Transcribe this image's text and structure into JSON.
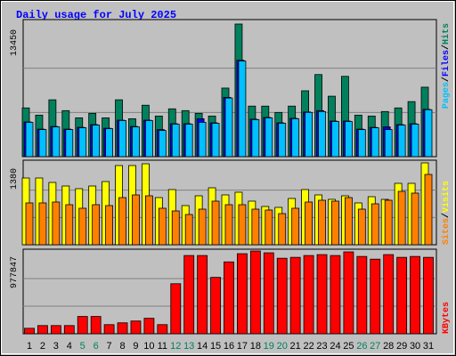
{
  "chart_data": [
    {
      "type": "bar",
      "title": "Daily usage for July 2025",
      "ylim": [
        0,
        13450
      ],
      "yticks": [
        13450
      ],
      "grid": true,
      "legend_separator": "/",
      "series": [
        {
          "name": "Hits",
          "color": "#00805c",
          "values": [
            4941,
            4209,
            5764,
            4666,
            3934,
            4392,
            3934,
            5764,
            3843,
            5215,
            4117,
            4849,
            4666,
            4392,
            4117,
            6954,
            13450,
            5124,
            5124,
            4483,
            5124,
            6679,
            8326,
            6130,
            8143,
            4209,
            4117,
            4575,
            4941,
            5581,
            7045
          ]
        },
        {
          "name": "Files",
          "color": "#0000ff",
          "values": [
            3520,
            2790,
            3060,
            2790,
            2970,
            3250,
            2880,
            3700,
            3060,
            3700,
            2745,
            3340,
            3340,
            3843,
            3430,
            6010,
            9780,
            3800,
            3980,
            3430,
            3890,
            4530,
            4666,
            3610,
            3610,
            2790,
            2970,
            3019,
            3250,
            3340,
            4800
          ]
        },
        {
          "name": "Pages",
          "color": "#00c0ff",
          "values": [
            3477,
            2745,
            3019,
            2745,
            2928,
            3202,
            2836,
            3660,
            3019,
            3660,
            2653,
            3294,
            3294,
            3477,
            3385,
            5947,
            9699,
            3751,
            3934,
            3385,
            3843,
            4483,
            4575,
            3568,
            3568,
            2745,
            2928,
            2745,
            3202,
            3294,
            4758
          ]
        }
      ]
    },
    {
      "type": "bar",
      "ylim": [
        0,
        1380
      ],
      "yticks": [
        1380
      ],
      "grid": true,
      "legend_separator": "/",
      "series": [
        {
          "name": "Visits",
          "color": "#ffff00",
          "values": [
            1125,
            1125,
            1050,
            990,
            945,
            990,
            1065,
            1335,
            1335,
            1365,
            795,
            930,
            660,
            825,
            960,
            840,
            885,
            735,
            645,
            630,
            780,
            930,
            840,
            765,
            825,
            705,
            810,
            765,
            1035,
            1035,
            1380
          ]
        },
        {
          "name": "Sites",
          "color": "#ff8000",
          "values": [
            705,
            705,
            720,
            675,
            615,
            675,
            660,
            795,
            840,
            825,
            615,
            570,
            510,
            600,
            735,
            675,
            675,
            600,
            585,
            525,
            615,
            720,
            750,
            735,
            795,
            600,
            690,
            750,
            900,
            870,
            1185
          ]
        }
      ]
    },
    {
      "type": "bar",
      "ylim": [
        0,
        977847
      ],
      "yticks": [
        977847
      ],
      "grid": true,
      "series": [
        {
          "name": "KBytes",
          "color": "#ff0000",
          "values": [
            64473,
            96710,
            96710,
            96710,
            204163,
            204163,
            107456,
            128947,
            150438,
            182674,
            107456,
            591007,
            924141,
            924141,
            666228,
            848911,
            945631,
            977847,
            956356,
            891893,
            902639,
            924141,
            934886,
            924141,
            967101,
            913384,
            881148,
            934886,
            902639,
            913384,
            902639
          ]
        }
      ],
      "categories": [
        "1",
        "2",
        "3",
        "4",
        "5",
        "6",
        "7",
        "8",
        "9",
        "10",
        "11",
        "12",
        "13",
        "14",
        "15",
        "16",
        "17",
        "18",
        "19",
        "20",
        "21",
        "22",
        "23",
        "24",
        "25",
        "26",
        "27",
        "28",
        "29",
        "30",
        "31"
      ],
      "category_colors": [
        "#000000",
        "#000000",
        "#000000",
        "#000000",
        "#00805c",
        "#00805c",
        "#000000",
        "#000000",
        "#000000",
        "#000000",
        "#000000",
        "#00805c",
        "#00805c",
        "#000000",
        "#000000",
        "#000000",
        "#000000",
        "#000000",
        "#00805c",
        "#00805c",
        "#000000",
        "#000000",
        "#000000",
        "#000000",
        "#000000",
        "#00805c",
        "#00805c",
        "#000000",
        "#000000",
        "#000000",
        "#000000"
      ]
    }
  ]
}
